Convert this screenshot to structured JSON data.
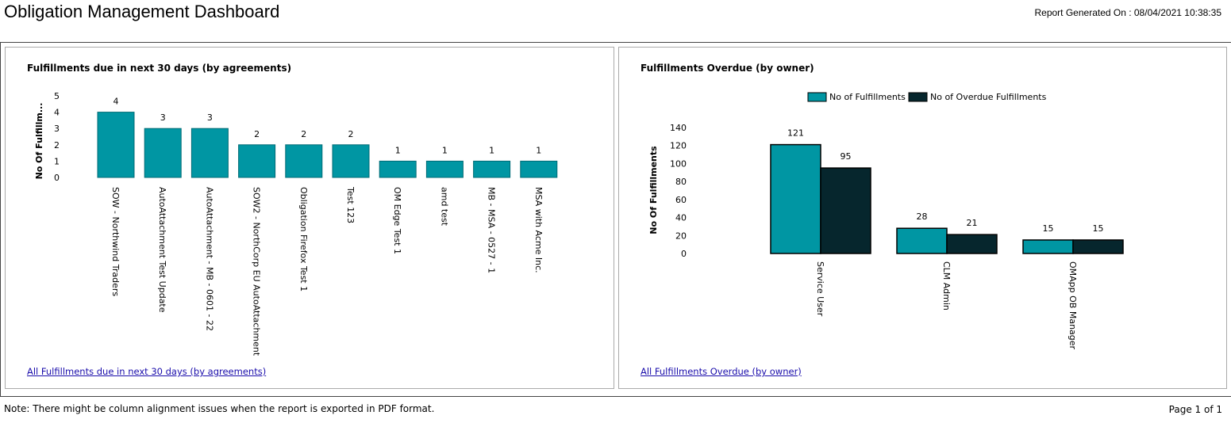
{
  "header": {
    "title": "Obligation Management Dashboard",
    "report_generated": "Report Generated On : 08/04/2021 10:38:35"
  },
  "colors": {
    "teal": "#0096a3",
    "teal_stroke": "#006b75",
    "dark": "#06262d",
    "link": "#1a0dab"
  },
  "panels": {
    "left": {
      "title": "Fulfillments due in next 30 days (by agreements)",
      "link": "All Fulfillments due in next 30 days (by agreements)"
    },
    "right": {
      "title": "Fulfillments Overdue (by owner)",
      "link": "All Fulfillments Overdue (by owner)"
    }
  },
  "chart_data": [
    {
      "type": "bar",
      "title": "Fulfillments due in next 30 days (by agreements)",
      "ylabel": "No Of Fulfillm...",
      "xlabel": "",
      "ylim": [
        0,
        5
      ],
      "yticks": [
        "0",
        "1",
        "2",
        "3",
        "4",
        "5"
      ],
      "categories": [
        "SOW - Northwind Traders",
        "AutoAttachment Test Update",
        "AutoAttachment - MB - 0601 - 22",
        "SOW2 - NorthCorp EU AutoAttachment",
        "Obligation Firefox Test 1",
        "Test 123",
        "OM Edge Test 1",
        "amd test",
        "MB - MSA - 0527 - 1",
        "MSA with Acme Inc."
      ],
      "values": [
        4,
        3,
        3,
        2,
        2,
        2,
        1,
        1,
        1,
        1
      ],
      "data_labels": [
        "4",
        "3",
        "3",
        "2",
        "2",
        "2",
        "1",
        "1",
        "1",
        "1"
      ]
    },
    {
      "type": "bar",
      "title": "Fulfillments Overdue (by owner)",
      "ylabel": "No Of Fulfillments",
      "xlabel": "",
      "ylim": [
        0,
        140
      ],
      "yticks": [
        "0",
        "20",
        "40",
        "60",
        "80",
        "100",
        "120",
        "140"
      ],
      "legend": [
        "No of Fulfillments",
        "No of Overdue Fulfillments"
      ],
      "legend_position": "top-center",
      "categories": [
        "Service User",
        "CLM Admin",
        "OMApp OB Manager"
      ],
      "series": [
        {
          "name": "No of Fulfillments",
          "values": [
            121,
            28,
            15
          ],
          "labels": [
            "121",
            "28",
            "15"
          ]
        },
        {
          "name": "No of Overdue Fulfillments",
          "values": [
            95,
            21,
            15
          ],
          "labels": [
            "95",
            "21",
            "15"
          ]
        }
      ]
    }
  ],
  "footer": {
    "note": "Note: There might be column alignment issues when the report is exported in PDF format.",
    "page": "Page 1 of 1"
  }
}
